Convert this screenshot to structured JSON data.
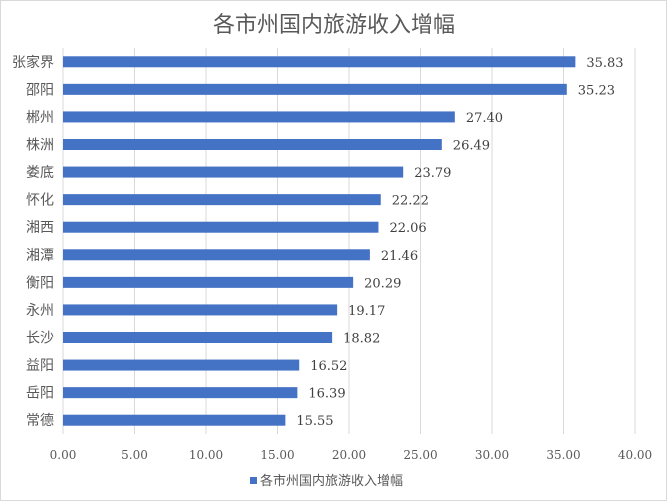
{
  "chart_data": {
    "type": "bar",
    "orientation": "horizontal",
    "title": "各市州国内旅游收入增幅",
    "categories": [
      "张家界",
      "邵阳",
      "郴州",
      "株洲",
      "娄底",
      "怀化",
      "湘西",
      "湘潭",
      "衡阳",
      "永州",
      "长沙",
      "益阳",
      "岳阳",
      "常德"
    ],
    "series": [
      {
        "name": "各市州国内旅游收入增幅",
        "values": [
          35.83,
          35.23,
          27.4,
          26.49,
          23.79,
          22.22,
          22.06,
          21.46,
          20.29,
          19.17,
          18.82,
          16.52,
          16.39,
          15.55
        ],
        "labels": [
          "35.83",
          "35.23",
          "27.40",
          "26.49",
          "23.79",
          "22.22",
          "22.06",
          "21.46",
          "20.29",
          "19.17",
          "18.82",
          "16.52",
          "16.39",
          "15.55"
        ]
      }
    ],
    "xlim": [
      0,
      40
    ],
    "x_ticks": [
      "0.00",
      "5.00",
      "10.00",
      "15.00",
      "20.00",
      "25.00",
      "30.00",
      "35.00",
      "40.00"
    ],
    "grid": true,
    "legend_position": "bottom",
    "bar_color": "#4472c4",
    "grid_color": "#d9d9d9"
  }
}
